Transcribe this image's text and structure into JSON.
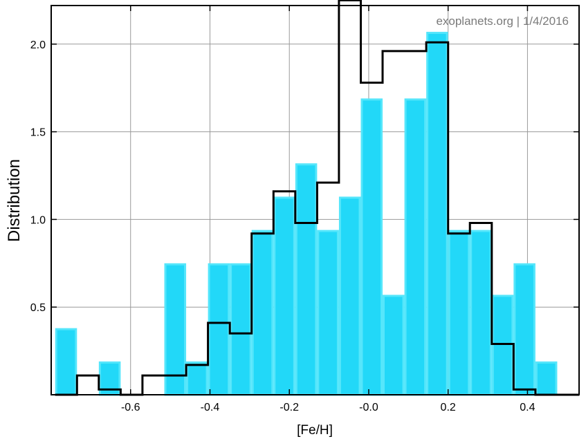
{
  "chart_data": {
    "type": "bar",
    "title": "",
    "annotation": "exoplanets.org | 1/4/2016",
    "xlabel": "[Fe/H]",
    "ylabel": "Distribution",
    "xlim": [
      -0.8,
      0.53
    ],
    "ylim": [
      0,
      2.22
    ],
    "xticks": [
      -0.6,
      -0.4,
      -0.2,
      0.0,
      0.2,
      0.4
    ],
    "xtick_labels": [
      "-0.6",
      "-0.4",
      "-0.2",
      "-0.0",
      "0.2",
      "0.4"
    ],
    "yticks": [
      0.5,
      1.0,
      1.5,
      2.0
    ],
    "ytick_labels": [
      "0.5",
      "1.0",
      "1.5",
      "2.0"
    ],
    "grid": true,
    "colors": {
      "filled": "#22d8f8",
      "filled_edge": "#55e6fb",
      "outline": "#000000",
      "grid": "#999999"
    },
    "bin_edges": [
      -0.79,
      -0.735,
      -0.68,
      -0.625,
      -0.57,
      -0.515,
      -0.46,
      -0.405,
      -0.35,
      -0.295,
      -0.24,
      -0.185,
      -0.13,
      -0.075,
      -0.02,
      0.035,
      0.09,
      0.145,
      0.2,
      0.255,
      0.31,
      0.365,
      0.42,
      0.475,
      0.53
    ],
    "series": [
      {
        "style": "filled",
        "values": [
          0.38,
          0.0,
          0.19,
          0.0,
          0.0,
          0.75,
          0.19,
          0.75,
          0.75,
          0.94,
          1.13,
          1.32,
          0.94,
          1.13,
          1.69,
          0.57,
          1.69,
          2.07,
          0.94,
          0.94,
          0.57,
          0.75,
          0.19,
          0.0
        ]
      },
      {
        "style": "outline",
        "values": [
          0.0,
          0.11,
          0.03,
          0.0,
          0.11,
          0.11,
          0.17,
          0.41,
          0.35,
          0.92,
          1.16,
          0.98,
          1.21,
          2.25,
          1.78,
          1.96,
          1.96,
          2.01,
          0.92,
          0.98,
          0.29,
          0.03,
          0.0,
          0.0
        ]
      }
    ]
  }
}
